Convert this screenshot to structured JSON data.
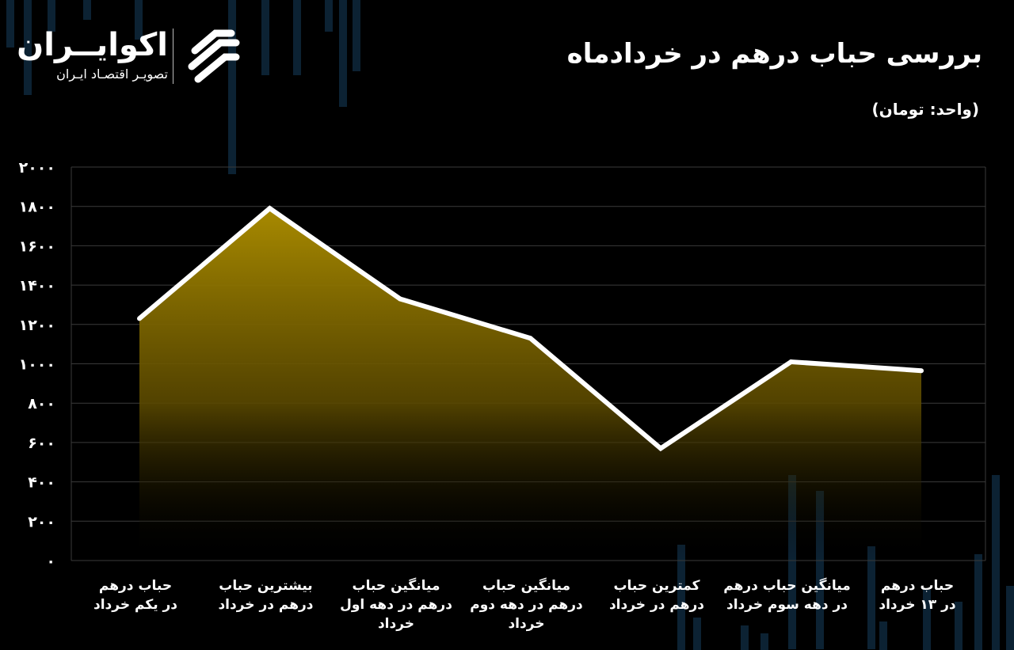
{
  "title": "بررسی  حباب درهم  در خردادماه",
  "unit": "(واحد: تومان)",
  "brand": {
    "name": "اکوایــران",
    "tagline": "تصویـر اقتصـاد ایـران"
  },
  "colors": {
    "background": "#000000",
    "line": "#ffffff",
    "fill_top": "#a88a00",
    "grid": "#3a3a3a"
  },
  "chart_data": {
    "type": "area",
    "title": "بررسی  حباب درهم  در خردادماه",
    "ylabel": "(واحد: تومان)",
    "ylim": [
      0,
      2000
    ],
    "yticks": [
      0,
      200,
      400,
      600,
      800,
      1000,
      1200,
      1400,
      1600,
      1800,
      2000
    ],
    "ytick_labels": [
      "۰",
      "۲۰۰",
      "۴۰۰",
      "۶۰۰",
      "۸۰۰",
      "۱۰۰۰",
      "۱۲۰۰",
      "۱۴۰۰",
      "۱۶۰۰",
      "۱۸۰۰",
      "۲۰۰۰"
    ],
    "grid": true,
    "categories": [
      [
        "حباب درهم",
        "در یکم خرداد"
      ],
      [
        "بیشترین حباب",
        "درهم در خرداد"
      ],
      [
        "میانگین حباب",
        "درهم در دهه اول",
        "خرداد"
      ],
      [
        "میانگین حباب",
        "درهم در دهه دوم",
        "خرداد"
      ],
      [
        "کمترین حباب",
        "درهم در خرداد"
      ],
      [
        "میانگین حباب درهم",
        "در دهه سوم خرداد"
      ],
      [
        "حباب درهم",
        "در ۱۳ خرداد"
      ]
    ],
    "values": [
      1230,
      1790,
      1330,
      1130,
      570,
      1010,
      965
    ]
  }
}
